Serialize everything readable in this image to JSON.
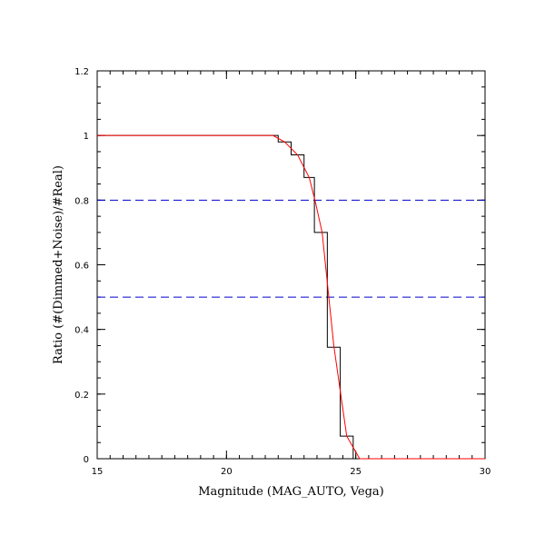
{
  "chart_data": {
    "type": "line",
    "xlabel": "Magnitude (MAG_AUTO, Vega)",
    "ylabel": "Ratio (#(Dimmed+Noise)/#Real)",
    "xlim": [
      15,
      30
    ],
    "ylim": [
      0,
      1.2
    ],
    "x_ticks": [
      "15",
      "20",
      "25",
      "30"
    ],
    "y_ticks": [
      "0",
      "0.2",
      "0.4",
      "0.6",
      "0.8",
      "1",
      "1.2"
    ],
    "grid": false,
    "reference_lines": [
      {
        "y": 0.8,
        "color": "#0000cc",
        "style": "dashed"
      },
      {
        "y": 0.5,
        "color": "#0000cc",
        "style": "dashed"
      }
    ],
    "series": [
      {
        "style": "step",
        "color": "#000000",
        "bins": [
          {
            "x0": 15.0,
            "x1": 22.0,
            "y": 1.0
          },
          {
            "x0": 22.0,
            "x1": 22.5,
            "y": 0.98
          },
          {
            "x0": 22.5,
            "x1": 23.0,
            "y": 0.94
          },
          {
            "x0": 23.0,
            "x1": 23.4,
            "y": 0.87
          },
          {
            "x0": 23.4,
            "x1": 23.9,
            "y": 0.7
          },
          {
            "x0": 23.9,
            "x1": 24.4,
            "y": 0.345
          },
          {
            "x0": 24.4,
            "x1": 24.9,
            "y": 0.07
          },
          {
            "x0": 24.9,
            "x1": 30.0,
            "y": 0.0
          }
        ]
      },
      {
        "style": "line",
        "color": "#ff0000",
        "x": [
          15.0,
          21.8,
          22.25,
          22.75,
          23.2,
          23.45,
          23.7,
          24.15,
          24.65,
          25.15,
          30.0
        ],
        "y": [
          1.0,
          1.0,
          0.98,
          0.94,
          0.87,
          0.79,
          0.7,
          0.35,
          0.07,
          0.0,
          0.0
        ]
      }
    ]
  }
}
